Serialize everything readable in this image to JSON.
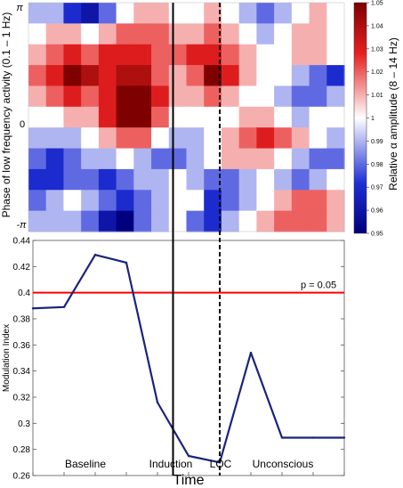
{
  "figure": {
    "xlabel": "Time",
    "phase_labels": {
      "time_periods": [
        "Baseline",
        "Induction",
        "LOC",
        "Unconscious"
      ]
    }
  },
  "chart_data": [
    {
      "type": "heatmap",
      "ylabel": "Phase of low frequency activity (0.1 – 1 Hz)",
      "yticks": [
        "π",
        "0",
        "-π"
      ],
      "colorbar": {
        "label": "Relative α amplitude (8 – 14 Hz)",
        "range": [
          0.95,
          1.05
        ],
        "ticks": [
          "1.05",
          "1.04",
          "1.03",
          "1.02",
          "1.01",
          "1",
          "0.99",
          "0.98",
          "0.97",
          "0.96",
          "0.95"
        ]
      },
      "grid_note_rows_top_to_bottom_phase_pi_to_minus_pi": 11,
      "values": [
        [
          0.99,
          0.99,
          0.97,
          0.96,
          0.98,
          1.0,
          1.01,
          1.01,
          1.0,
          1.0,
          1.01,
          1.0,
          0.99,
          0.98,
          0.99,
          1.0,
          1.01,
          1.0
        ],
        [
          1.0,
          1.01,
          1.01,
          1.0,
          1.01,
          1.02,
          1.02,
          1.02,
          1.01,
          1.01,
          1.02,
          1.01,
          1.0,
          0.99,
          1.0,
          1.01,
          1.01,
          1.0
        ],
        [
          1.01,
          1.02,
          1.03,
          1.02,
          1.03,
          1.03,
          1.03,
          1.02,
          1.02,
          1.03,
          1.03,
          1.02,
          1.01,
          1.0,
          1.0,
          1.01,
          1.01,
          1.0
        ],
        [
          1.02,
          1.03,
          1.05,
          1.04,
          1.03,
          1.04,
          1.04,
          1.02,
          1.01,
          1.02,
          1.05,
          1.03,
          1.01,
          1.0,
          1.0,
          0.99,
          0.98,
          0.97
        ],
        [
          1.01,
          1.02,
          1.03,
          1.02,
          1.03,
          1.05,
          1.05,
          1.03,
          1.01,
          1.01,
          1.02,
          1.01,
          1.0,
          1.0,
          0.99,
          0.98,
          0.98,
          0.99
        ],
        [
          1.0,
          1.0,
          1.01,
          1.01,
          1.03,
          1.05,
          1.05,
          1.02,
          1.0,
          1.0,
          1.0,
          1.0,
          1.01,
          1.01,
          1.0,
          0.99,
          1.0,
          1.0
        ],
        [
          0.99,
          0.99,
          0.99,
          1.0,
          1.01,
          1.02,
          1.02,
          1.0,
          0.99,
          0.99,
          1.0,
          1.01,
          1.02,
          1.03,
          1.02,
          1.01,
          1.0,
          0.99
        ],
        [
          0.98,
          0.97,
          0.98,
          0.99,
          0.99,
          1.0,
          0.99,
          0.98,
          0.98,
          0.99,
          1.0,
          1.01,
          1.01,
          1.01,
          1.0,
          0.99,
          0.98,
          0.98
        ],
        [
          0.97,
          0.97,
          0.98,
          0.98,
          0.97,
          0.98,
          0.99,
          0.99,
          1.0,
          0.99,
          0.98,
          0.98,
          0.99,
          1.0,
          0.99,
          0.98,
          0.99,
          1.0
        ],
        [
          0.98,
          0.99,
          1.0,
          0.99,
          0.98,
          0.97,
          0.98,
          0.99,
          1.0,
          1.0,
          0.97,
          0.98,
          0.99,
          1.0,
          1.01,
          1.02,
          1.02,
          1.01
        ],
        [
          0.99,
          0.99,
          0.99,
          0.98,
          0.96,
          0.95,
          0.98,
          0.99,
          1.0,
          0.98,
          0.97,
          0.99,
          1.0,
          1.01,
          1.02,
          1.02,
          1.02,
          1.01
        ]
      ]
    },
    {
      "type": "line",
      "ylabel": "Modulation Index",
      "ylim": [
        0.26,
        0.44
      ],
      "yticks": [
        0.26,
        0.28,
        0.3,
        0.32,
        0.34,
        0.36,
        0.38,
        0.4,
        0.42,
        0.44
      ],
      "series": [
        {
          "x": [
            0,
            1,
            2,
            3,
            4,
            5,
            6,
            7,
            8,
            9,
            10
          ],
          "values": [
            0.388,
            0.389,
            0.429,
            0.423,
            0.316,
            0.275,
            0.27,
            0.354,
            0.289,
            0.289,
            0.289
          ]
        }
      ],
      "xlim": [
        0,
        10
      ],
      "threshold": {
        "value": 0.4,
        "label": "p = 0.05",
        "color": "#ff0000"
      },
      "induction_x": 4.5,
      "loc_x": 6.0,
      "line_color": "#1a237e"
    }
  ],
  "colors": {
    "line": "#1a237e",
    "threshold": "#ff0000"
  }
}
